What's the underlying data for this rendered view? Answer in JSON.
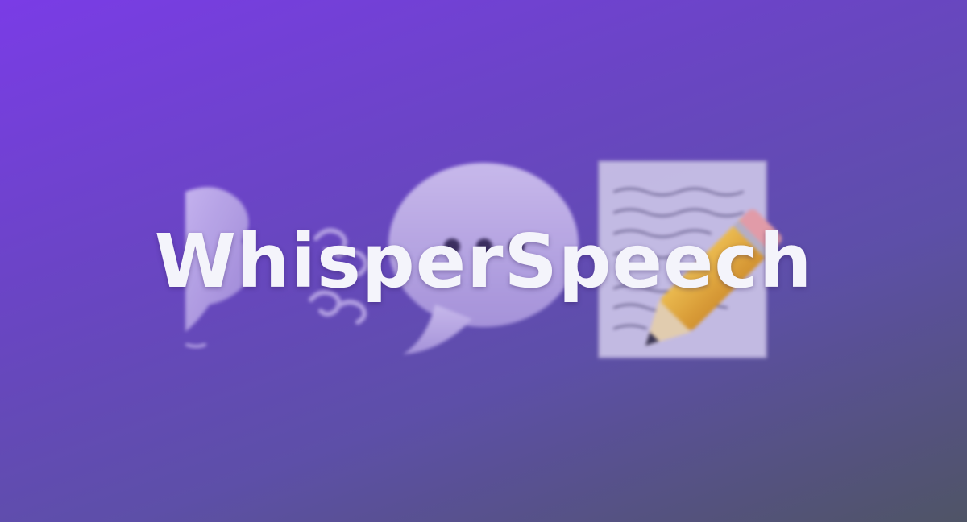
{
  "banner": {
    "title": "WhisperSpeech",
    "icons": [
      "wind-face-icon",
      "speech-balloon-icon",
      "memo-icon"
    ],
    "colors": {
      "gradient_start": "#7a3ce6",
      "gradient_mid": "#5d4fa8",
      "gradient_end": "#4f5466",
      "title": "#f4f4fb"
    }
  }
}
